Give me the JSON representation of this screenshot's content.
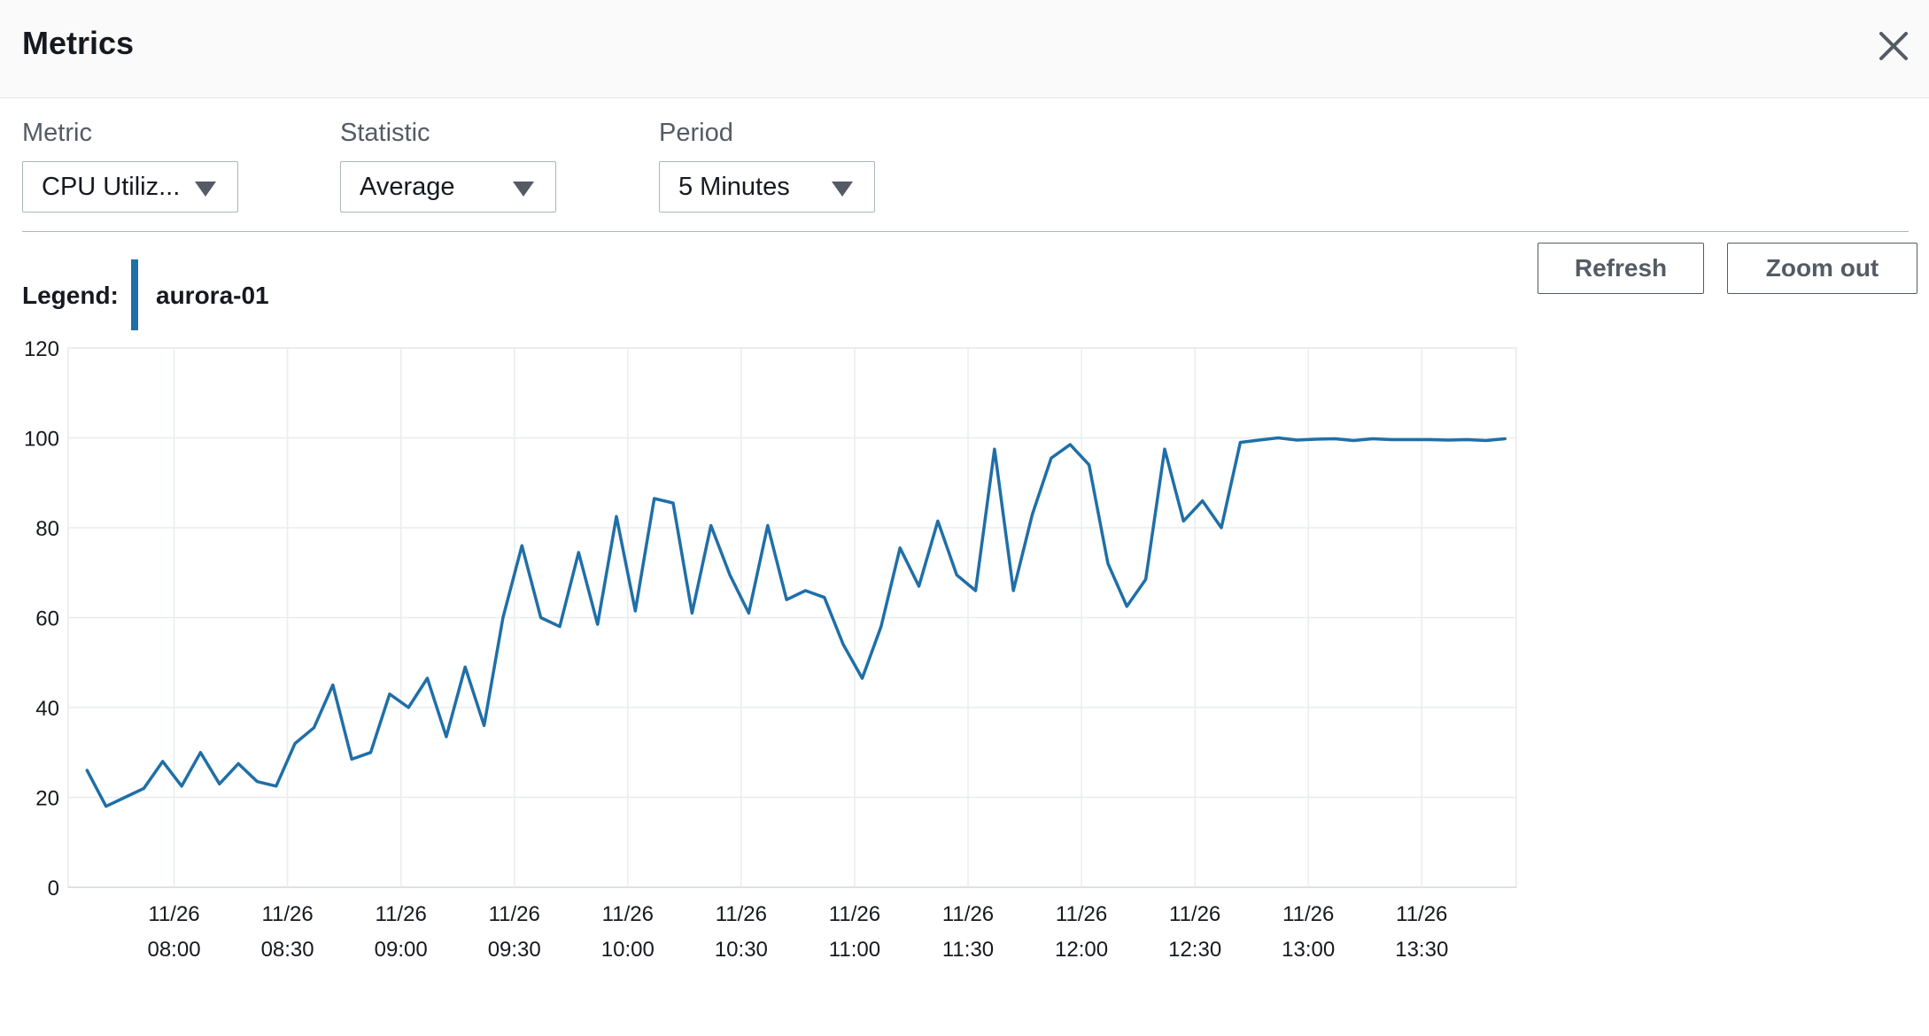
{
  "header": {
    "title": "Metrics",
    "close_icon": "close-icon"
  },
  "controls": {
    "metric": {
      "label": "Metric",
      "value": "CPU Utiliz..."
    },
    "statistic": {
      "label": "Statistic",
      "value": "Average"
    },
    "period": {
      "label": "Period",
      "value": "5 Minutes"
    }
  },
  "actions": {
    "refresh": "Refresh",
    "zoom_out": "Zoom out"
  },
  "legend": {
    "label": "Legend:",
    "series_name": "aurora-01",
    "color": "#1f6fa8"
  },
  "chart_data": {
    "type": "line",
    "x_tick_labels": [
      [
        "11/26",
        "08:00"
      ],
      [
        "11/26",
        "08:30"
      ],
      [
        "11/26",
        "09:00"
      ],
      [
        "11/26",
        "09:30"
      ],
      [
        "11/26",
        "10:00"
      ],
      [
        "11/26",
        "10:30"
      ],
      [
        "11/26",
        "11:00"
      ],
      [
        "11/26",
        "11:30"
      ],
      [
        "11/26",
        "12:00"
      ],
      [
        "11/26",
        "12:30"
      ],
      [
        "11/26",
        "13:00"
      ],
      [
        "11/26",
        "13:30"
      ]
    ],
    "x_ticks_minutes": [
      480,
      510,
      540,
      570,
      600,
      630,
      660,
      690,
      720,
      750,
      780,
      810
    ],
    "xlim_minutes": [
      452,
      835
    ],
    "yticks": [
      0,
      20,
      40,
      60,
      80,
      100,
      120
    ],
    "ylim": [
      0,
      120
    ],
    "grid": true,
    "series": [
      {
        "name": "aurora-01",
        "color": "#1f6fa8",
        "x_minutes": [
          457,
          462,
          467,
          472,
          477,
          482,
          487,
          492,
          497,
          502,
          507,
          512,
          517,
          522,
          527,
          532,
          537,
          542,
          547,
          552,
          557,
          562,
          567,
          572,
          577,
          582,
          587,
          592,
          597,
          602,
          607,
          612,
          617,
          622,
          627,
          632,
          637,
          642,
          647,
          652,
          657,
          662,
          667,
          672,
          677,
          682,
          687,
          692,
          697,
          702,
          707,
          712,
          717,
          722,
          727,
          732,
          737,
          742,
          747,
          752,
          757,
          762,
          767,
          772,
          777,
          782,
          787,
          792,
          797,
          802,
          807,
          812,
          817,
          822,
          827,
          832
        ],
        "values": [
          26,
          18,
          20,
          22,
          28,
          22.5,
          30,
          23,
          27.5,
          23.5,
          22.5,
          32,
          35.5,
          45,
          28.5,
          30,
          43,
          40,
          46.5,
          33.5,
          49,
          36,
          60,
          76,
          60,
          58,
          74.5,
          58.5,
          82.5,
          61.5,
          86.5,
          85.5,
          61,
          80.5,
          69.5,
          61,
          80.5,
          64,
          66,
          64.5,
          54,
          46.5,
          58,
          75.5,
          67,
          81.5,
          69.5,
          66,
          97.5,
          66,
          83,
          95.5,
          98.5,
          94,
          72,
          62.5,
          68.5,
          97.5,
          81.5,
          86,
          80,
          99,
          99.5,
          100,
          99.5,
          99.7,
          99.8,
          99.4,
          99.8,
          99.6,
          99.6,
          99.6,
          99.5,
          99.6,
          99.4,
          99.8
        ]
      }
    ]
  }
}
